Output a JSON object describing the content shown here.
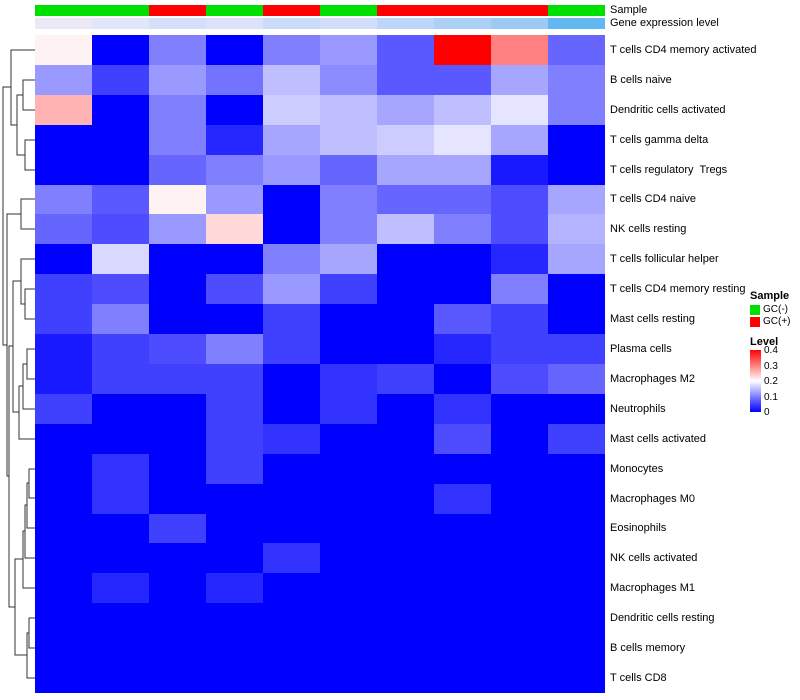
{
  "annotations": {
    "sample_label": "Sample",
    "expression_label": "Gene expression level",
    "sample_groups": [
      "GC(-)",
      "GC(-)",
      "GC(+)",
      "GC(-)",
      "GC(+)",
      "GC(-)",
      "GC(+)",
      "GC(+)",
      "GC(+)",
      "GC(-)"
    ],
    "expression_colors": [
      "#ece9f7",
      "#e1e6f8",
      "#d5dffa",
      "#dce2f9",
      "#cbdcfa",
      "#d2defa",
      "#bcd5f8",
      "#add0f6",
      "#9dcaf3",
      "#62b8ef"
    ]
  },
  "legend": {
    "sample_title": "Sample",
    "sample_items": [
      {
        "label": "GC(-)",
        "color": "#00e000"
      },
      {
        "label": "GC(+)",
        "color": "#ff0000"
      }
    ],
    "level_title": "Level",
    "level_ticks": [
      "0.4",
      "0.3",
      "0.2",
      "0.1",
      "0"
    ]
  },
  "colors": {
    "gc_neg": "#00e000",
    "gc_pos": "#ff0000"
  },
  "chart_data": {
    "type": "heatmap",
    "title": "",
    "legend_position": "right",
    "rows": [
      "T cells CD4 memory activated",
      "B cells naive",
      "Dendritic cells activated",
      "T cells gamma delta",
      "T cells regulatory  Tregs",
      "T cells CD4 naive",
      "NK cells resting",
      "T cells follicular helper",
      "T cells CD4 memory resting",
      "Mast cells resting",
      "Plasma cells",
      "Macrophages M2",
      "Neutrophils",
      "Mast cells activated",
      "Monocytes",
      "Macrophages M0",
      "Eosinophils",
      "NK cells activated",
      "Macrophages M1",
      "Dendritic cells resting",
      "B cells memory",
      "T cells CD8"
    ],
    "n_columns": 10,
    "column_groups": [
      "GC(-)",
      "GC(-)",
      "GC(+)",
      "GC(-)",
      "GC(+)",
      "GC(-)",
      "GC(+)",
      "GC(+)",
      "GC(+)",
      "GC(-)"
    ],
    "values": [
      [
        0.21,
        0,
        0.1,
        0,
        0.1,
        0.12,
        0.07,
        0.4,
        0.3,
        0.08
      ],
      [
        0.12,
        0.05,
        0.12,
        0.09,
        0.15,
        0.11,
        0.07,
        0.07,
        0.13,
        0.1
      ],
      [
        0.26,
        0,
        0.1,
        0,
        0.16,
        0.15,
        0.13,
        0.15,
        0.18,
        0.1
      ],
      [
        0,
        0,
        0.1,
        0.03,
        0.13,
        0.15,
        0.16,
        0.18,
        0.13,
        0
      ],
      [
        0,
        0,
        0.08,
        0.1,
        0.12,
        0.08,
        0.13,
        0.13,
        0.02,
        0
      ],
      [
        0.1,
        0.07,
        0.21,
        0.12,
        0,
        0.1,
        0.08,
        0.08,
        0.06,
        0.13
      ],
      [
        0.08,
        0.06,
        0.12,
        0.23,
        0,
        0.1,
        0.15,
        0.1,
        0.06,
        0.14
      ],
      [
        0,
        0.17,
        0,
        0,
        0.1,
        0.13,
        0,
        0,
        0.03,
        0.13
      ],
      [
        0.05,
        0.06,
        0,
        0.06,
        0.12,
        0.05,
        0,
        0,
        0.1,
        0
      ],
      [
        0.05,
        0.1,
        0,
        0,
        0.05,
        0,
        0,
        0.07,
        0.05,
        0
      ],
      [
        0.02,
        0.05,
        0.06,
        0.1,
        0.05,
        0,
        0,
        0.03,
        0.05,
        0.05
      ],
      [
        0.02,
        0.05,
        0.05,
        0.05,
        0,
        0.04,
        0.05,
        0,
        0.06,
        0.08
      ],
      [
        0.05,
        0,
        0,
        0.05,
        0,
        0.04,
        0,
        0.04,
        0,
        0
      ],
      [
        0,
        0,
        0,
        0.05,
        0.04,
        0,
        0,
        0.06,
        0,
        0.05
      ],
      [
        0,
        0.04,
        0,
        0.05,
        0,
        0,
        0,
        0,
        0,
        0
      ],
      [
        0,
        0.04,
        0,
        0,
        0,
        0,
        0,
        0.04,
        0,
        0
      ],
      [
        0,
        0,
        0.05,
        0,
        0,
        0,
        0,
        0,
        0,
        0
      ],
      [
        0,
        0,
        0,
        0,
        0.04,
        0,
        0,
        0,
        0,
        0
      ],
      [
        0,
        0.03,
        0,
        0.03,
        0,
        0,
        0,
        0,
        0,
        0
      ],
      [
        0,
        0,
        0,
        0,
        0,
        0,
        0,
        0,
        0,
        0
      ],
      [
        0,
        0,
        0,
        0,
        0,
        0,
        0,
        0,
        0,
        0
      ],
      [
        0,
        0,
        0,
        0,
        0,
        0,
        0,
        0,
        0,
        0
      ]
    ],
    "color_scale": {
      "min": 0,
      "mid": 0.2,
      "max": 0.4,
      "low_color": "#0000ff",
      "mid_color": "#ffffff",
      "high_color": "#ff0000"
    }
  }
}
